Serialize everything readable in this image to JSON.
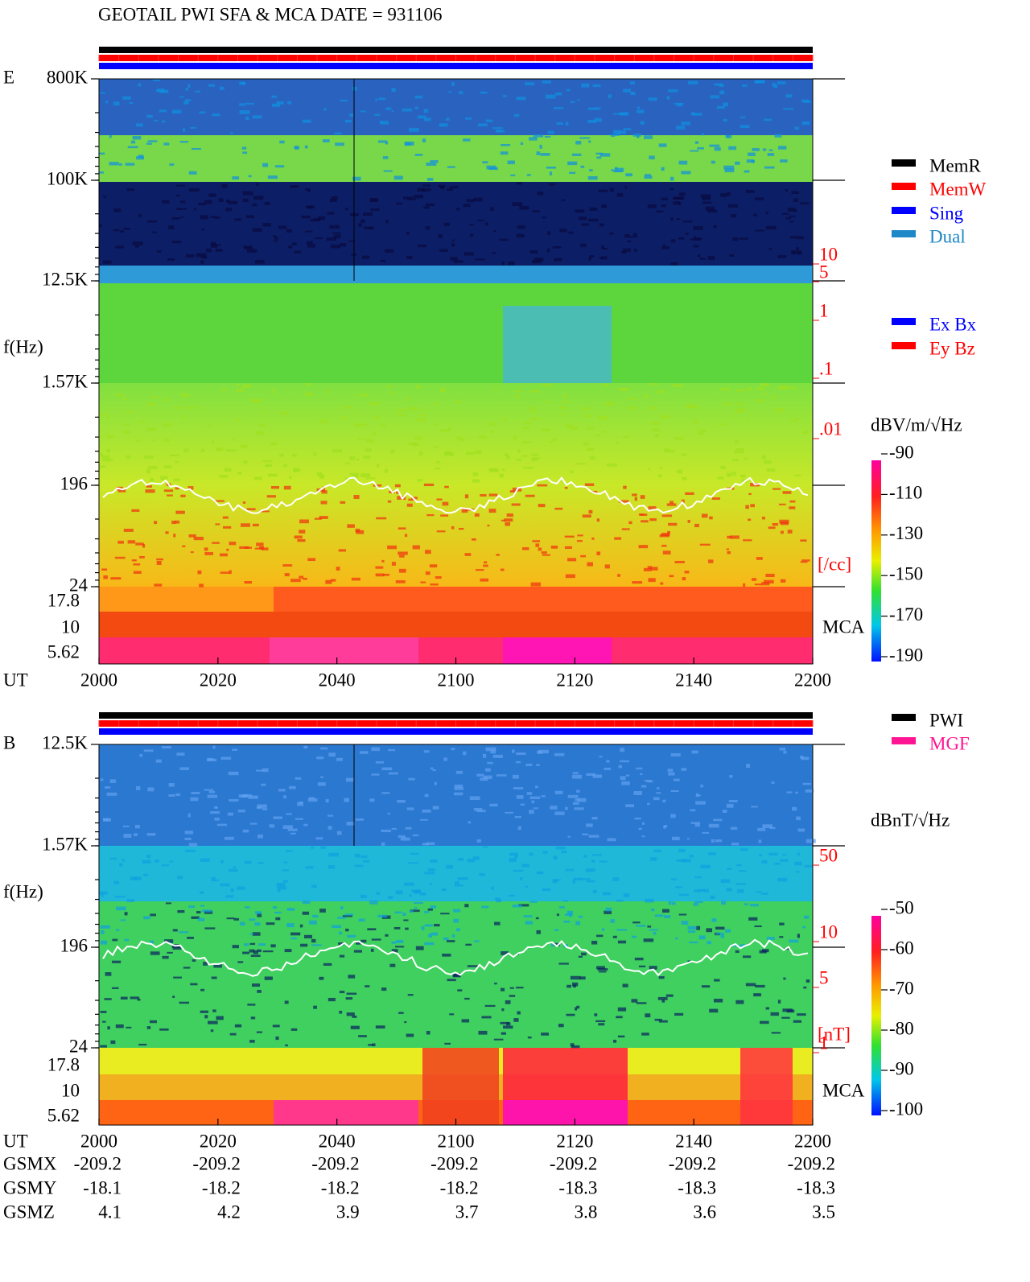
{
  "header": {
    "title": "GEOTAIL  PWI SFA & MCA   DATE = 931106"
  },
  "time_axis": {
    "label": "UT",
    "ticks": [
      "2000",
      "2020",
      "2040",
      "2100",
      "2120",
      "2140",
      "2200"
    ]
  },
  "panels": [
    {
      "name": "E",
      "freq_label": "f(Hz)",
      "freq_ticks": [
        "800K",
        "100K",
        "12.5K",
        "1.57K",
        "196",
        "24"
      ],
      "mca_ticks": [
        "17.8",
        "10",
        "5.62"
      ],
      "mca_label": "MCA",
      "right_ticks": [
        "10",
        "5",
        "1",
        ".1",
        ".01"
      ],
      "right_unit": "[/cc]",
      "legend": [
        {
          "label": "MemR",
          "color": "#000000"
        },
        {
          "label": "MemW",
          "color": "#ff0000"
        },
        {
          "label": "Sing",
          "color": "#0000ff"
        },
        {
          "label": "Dual",
          "color": "#1e88c8"
        }
      ],
      "legend2": [
        {
          "label": "Ex Bx",
          "color": "#0000ff"
        },
        {
          "label": "Ey Bz",
          "color": "#ff0000"
        }
      ],
      "colorbar": {
        "unit": "dBV/m/√Hz",
        "ticks": [
          -90,
          -110,
          -130,
          -150,
          -170,
          -190
        ]
      }
    },
    {
      "name": "B",
      "freq_label": "f(Hz)",
      "freq_ticks": [
        "12.5K",
        "1.57K",
        "196",
        "24"
      ],
      "mca_ticks": [
        "17.8",
        "10",
        "5.62"
      ],
      "mca_label": "MCA",
      "right_ticks": [
        "50",
        "10",
        "5",
        "1"
      ],
      "right_unit": "[nT]",
      "legend": [
        {
          "label": "PWI",
          "color": "#000000"
        },
        {
          "label": "MGF",
          "color": "#ff1493"
        }
      ],
      "legend2": [],
      "colorbar": {
        "unit": "dBnT/√Hz",
        "ticks": [
          -50,
          -60,
          -70,
          -80,
          -90,
          -100
        ]
      }
    }
  ],
  "orbit": [
    {
      "label": "GSMX",
      "values": [
        -209.2,
        -209.2,
        -209.2,
        -209.2,
        -209.2,
        -209.2,
        -209.2
      ]
    },
    {
      "label": "GSMY",
      "values": [
        -18.1,
        -18.2,
        -18.2,
        -18.2,
        -18.3,
        -18.3,
        -18.3
      ]
    },
    {
      "label": "GSMZ",
      "values": [
        4.1,
        4.2,
        3.9,
        3.7,
        3.8,
        3.6,
        3.5
      ]
    }
  ]
}
